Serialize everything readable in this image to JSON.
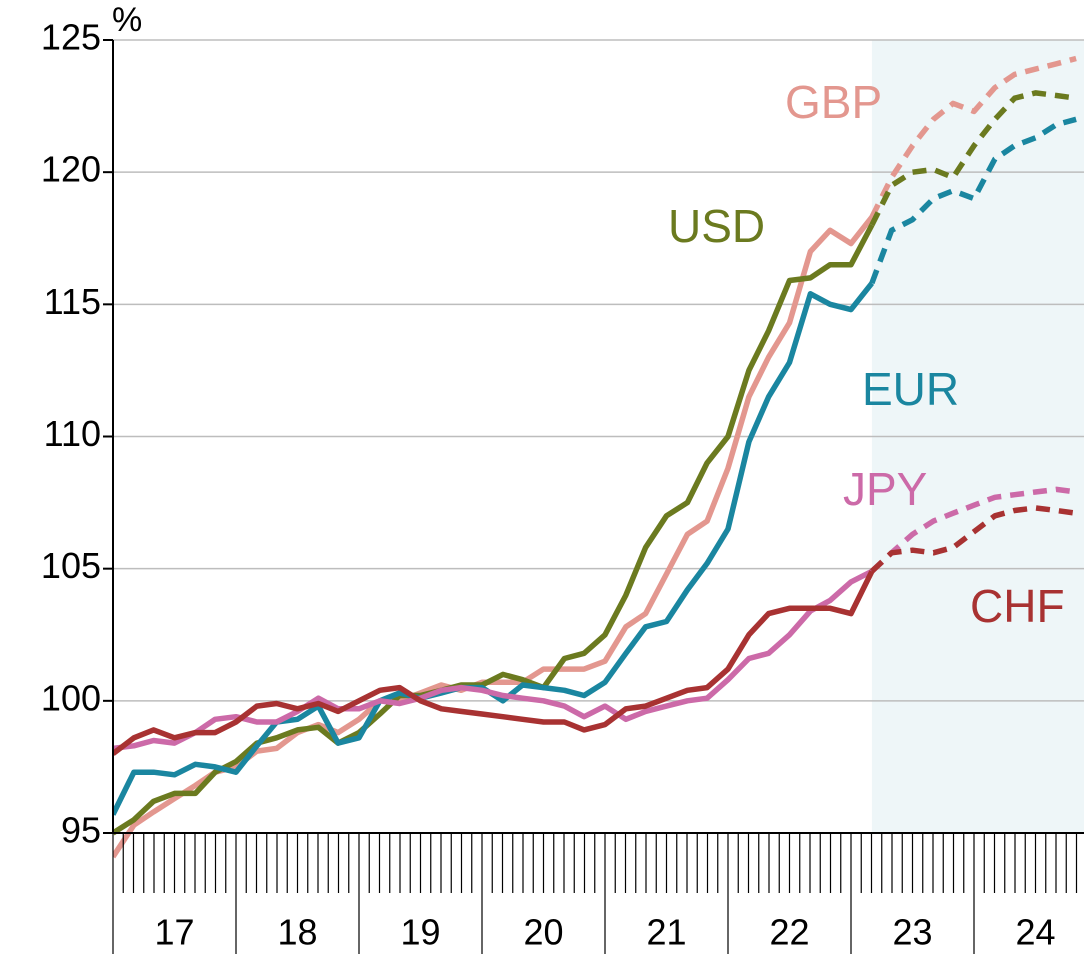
{
  "chart_data": {
    "type": "line",
    "y_unit": "%",
    "x": [
      17.0,
      17.17,
      17.33,
      17.5,
      17.67,
      17.83,
      18.0,
      18.17,
      18.33,
      18.5,
      18.67,
      18.83,
      19.0,
      19.17,
      19.33,
      19.5,
      19.67,
      19.83,
      20.0,
      20.17,
      20.33,
      20.5,
      20.67,
      20.83,
      21.0,
      21.17,
      21.33,
      21.5,
      21.67,
      21.83,
      22.0,
      22.17,
      22.33,
      22.5,
      22.67,
      22.83,
      23.0,
      23.17,
      23.33,
      23.5,
      23.67,
      23.83,
      24.0,
      24.17,
      24.33,
      24.5,
      24.67,
      24.83
    ],
    "xlim": [
      17,
      25
    ],
    "xticks": [
      {
        "value": 17.5,
        "label": "17"
      },
      {
        "value": 18.5,
        "label": "18"
      },
      {
        "value": 19.5,
        "label": "19"
      },
      {
        "value": 20.5,
        "label": "20"
      },
      {
        "value": 21.5,
        "label": "21"
      },
      {
        "value": 22.5,
        "label": "22"
      },
      {
        "value": 23.5,
        "label": "23"
      },
      {
        "value": 24.5,
        "label": "24"
      }
    ],
    "ylim": [
      95,
      125
    ],
    "yticks": [
      95,
      100,
      105,
      110,
      115,
      120,
      125
    ],
    "grid": true,
    "forecast_from": 23.17,
    "series": [
      {
        "name": "GBP",
        "color": "#e3978f",
        "values": [
          94.1,
          95.3,
          95.8,
          96.3,
          96.8,
          97.3,
          97.5,
          98.1,
          98.2,
          98.8,
          99.1,
          98.8,
          99.3,
          100.0,
          100.0,
          100.3,
          100.6,
          100.4,
          100.7,
          100.7,
          100.7,
          101.2,
          101.2,
          101.2,
          101.5,
          102.8,
          103.3,
          104.8,
          106.3,
          106.8,
          108.8,
          111.5,
          113.0,
          114.3,
          117.0,
          117.8,
          117.3,
          118.3,
          null,
          null,
          null,
          null,
          null,
          null,
          null,
          null,
          null,
          null
        ],
        "forecast": [
          null,
          null,
          null,
          null,
          null,
          null,
          null,
          null,
          null,
          null,
          null,
          null,
          null,
          null,
          null,
          null,
          null,
          null,
          null,
          null,
          null,
          null,
          null,
          null,
          null,
          null,
          null,
          null,
          null,
          null,
          null,
          null,
          null,
          null,
          null,
          null,
          null,
          118.3,
          119.8,
          121.0,
          122.0,
          122.6,
          122.3,
          123.2,
          123.7,
          123.9,
          124.1,
          124.3
        ]
      },
      {
        "name": "USD",
        "color": "#6b7a1f",
        "values": [
          95.0,
          95.5,
          96.2,
          96.5,
          96.5,
          97.3,
          97.7,
          98.4,
          98.6,
          98.9,
          99.0,
          98.4,
          98.8,
          99.5,
          100.2,
          100.2,
          100.4,
          100.6,
          100.6,
          101.0,
          100.8,
          100.5,
          101.6,
          101.8,
          102.5,
          104.0,
          105.8,
          107.0,
          107.5,
          109.0,
          110.0,
          112.5,
          114.0,
          115.9,
          116.0,
          116.5,
          116.5,
          118.0,
          null,
          null,
          null,
          null,
          null,
          null,
          null,
          null,
          null,
          null
        ],
        "forecast": [
          null,
          null,
          null,
          null,
          null,
          null,
          null,
          null,
          null,
          null,
          null,
          null,
          null,
          null,
          null,
          null,
          null,
          null,
          null,
          null,
          null,
          null,
          null,
          null,
          null,
          null,
          null,
          null,
          null,
          null,
          null,
          null,
          null,
          null,
          null,
          null,
          null,
          118.0,
          119.5,
          120.0,
          120.1,
          119.8,
          121.0,
          122.0,
          122.8,
          123.0,
          122.9,
          122.8
        ]
      },
      {
        "name": "EUR",
        "color": "#1a86a0",
        "values": [
          95.7,
          97.3,
          97.3,
          97.2,
          97.6,
          97.5,
          97.3,
          98.3,
          99.2,
          99.3,
          99.8,
          98.4,
          98.6,
          100.0,
          100.3,
          100.1,
          100.3,
          100.5,
          100.5,
          100.0,
          100.6,
          100.5,
          100.4,
          100.2,
          100.7,
          101.8,
          102.8,
          103.0,
          104.2,
          105.2,
          106.5,
          109.8,
          111.5,
          112.8,
          115.4,
          115.0,
          114.8,
          115.8,
          null,
          null,
          null,
          null,
          null,
          null,
          null,
          null,
          null,
          null
        ],
        "forecast": [
          null,
          null,
          null,
          null,
          null,
          null,
          null,
          null,
          null,
          null,
          null,
          null,
          null,
          null,
          null,
          null,
          null,
          null,
          null,
          null,
          null,
          null,
          null,
          null,
          null,
          null,
          null,
          null,
          null,
          null,
          null,
          null,
          null,
          null,
          null,
          null,
          null,
          115.8,
          117.8,
          118.2,
          119.0,
          119.3,
          119.0,
          120.5,
          121.0,
          121.3,
          121.8,
          122.0
        ]
      },
      {
        "name": "JPY",
        "color": "#cc6aa8",
        "values": [
          98.2,
          98.3,
          98.5,
          98.4,
          98.8,
          99.3,
          99.4,
          99.2,
          99.2,
          99.6,
          100.1,
          99.7,
          99.7,
          100.0,
          99.9,
          100.1,
          100.4,
          100.5,
          100.4,
          100.2,
          100.1,
          100.0,
          99.8,
          99.4,
          99.8,
          99.3,
          99.6,
          99.8,
          100.0,
          100.1,
          100.8,
          101.6,
          101.8,
          102.5,
          103.4,
          103.8,
          104.5,
          104.9,
          null,
          null,
          null,
          null,
          null,
          null,
          null,
          null,
          null,
          null
        ],
        "forecast": [
          null,
          null,
          null,
          null,
          null,
          null,
          null,
          null,
          null,
          null,
          null,
          null,
          null,
          null,
          null,
          null,
          null,
          null,
          null,
          null,
          null,
          null,
          null,
          null,
          null,
          null,
          null,
          null,
          null,
          null,
          null,
          null,
          null,
          null,
          null,
          null,
          null,
          104.9,
          105.6,
          106.3,
          106.8,
          107.1,
          107.4,
          107.7,
          107.8,
          107.9,
          108.0,
          107.9
        ]
      },
      {
        "name": "CHF",
        "color": "#a83232",
        "values": [
          98.0,
          98.6,
          98.9,
          98.6,
          98.8,
          98.8,
          99.2,
          99.8,
          99.9,
          99.7,
          99.9,
          99.6,
          100.0,
          100.4,
          100.5,
          100.0,
          99.7,
          99.6,
          99.5,
          99.4,
          99.3,
          99.2,
          99.2,
          98.9,
          99.1,
          99.7,
          99.8,
          100.1,
          100.4,
          100.5,
          101.2,
          102.5,
          103.3,
          103.5,
          103.5,
          103.5,
          103.3,
          104.9,
          null,
          null,
          null,
          null,
          null,
          null,
          null,
          null,
          null,
          null
        ],
        "forecast": [
          null,
          null,
          null,
          null,
          null,
          null,
          null,
          null,
          null,
          null,
          null,
          null,
          null,
          null,
          null,
          null,
          null,
          null,
          null,
          null,
          null,
          null,
          null,
          null,
          null,
          null,
          null,
          null,
          null,
          null,
          null,
          null,
          null,
          null,
          null,
          null,
          null,
          104.9,
          105.6,
          105.7,
          105.6,
          105.8,
          106.4,
          107.0,
          107.2,
          107.3,
          107.2,
          107.1
        ]
      }
    ]
  }
}
